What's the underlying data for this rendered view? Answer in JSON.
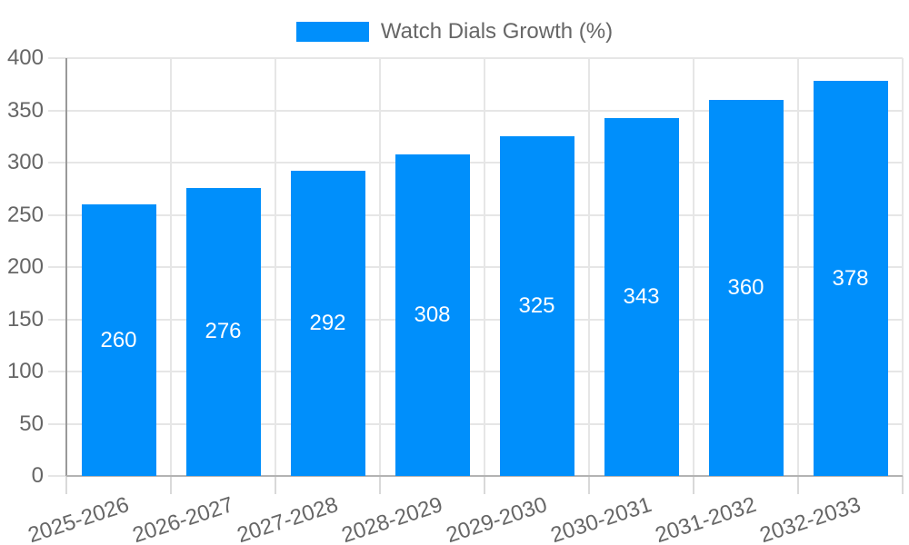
{
  "legend": {
    "label": "Watch Dials Growth (%)"
  },
  "chart_data": {
    "type": "bar",
    "title": "Watch Dials Growth (%)",
    "categories": [
      "2025-2026",
      "2026-2027",
      "2027-2028",
      "2028-2029",
      "2029-2030",
      "2030-2031",
      "2031-2032",
      "2032-2033"
    ],
    "series": [
      {
        "name": "Watch Dials Growth (%)",
        "values": [
          260,
          276,
          292,
          308,
          325,
          343,
          360,
          378
        ]
      }
    ],
    "data_labels": [
      260,
      276,
      292,
      308,
      325,
      343,
      360,
      378
    ],
    "xlabel": "",
    "ylabel": "",
    "ylim": [
      0,
      400
    ],
    "yticks": [
      0,
      50,
      100,
      150,
      200,
      250,
      300,
      350,
      400
    ],
    "grid": true,
    "legend_position": "top",
    "x_tick_rotation_deg": -18
  },
  "colors": {
    "bar": "#008ffb",
    "grid": "#e6e6e6",
    "tick": "#d9d9d9",
    "axis-y": "#999999",
    "axis-x": "#b3b3b3",
    "text": "#666666",
    "value-label": "#ffffff",
    "background": "#ffffff"
  }
}
